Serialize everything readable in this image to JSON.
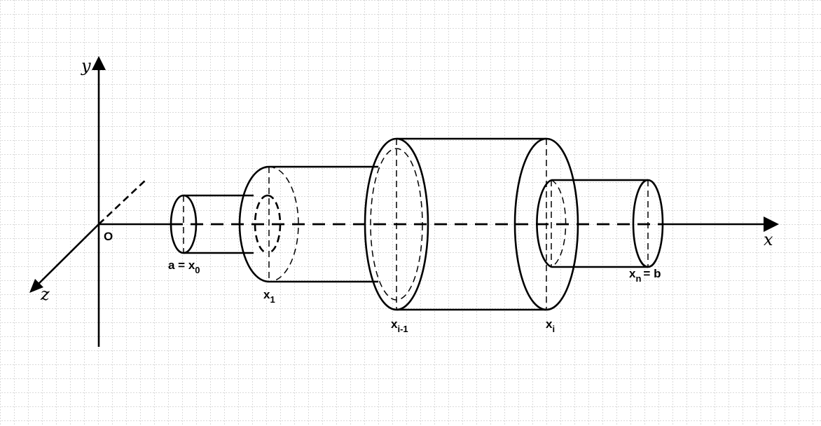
{
  "axes": {
    "x_label": "x",
    "y_label": "y",
    "z_label": "z",
    "origin_label": "O"
  },
  "points": [
    {
      "main": "a = x",
      "sub": "0",
      "tail": ""
    },
    {
      "main": "x",
      "sub": "1",
      "tail": ""
    },
    {
      "main": "x",
      "sub": "i-1",
      "tail": ""
    },
    {
      "main": "x",
      "sub": "i",
      "tail": ""
    },
    {
      "main": "x",
      "sub": "n",
      "tail": "= b"
    }
  ],
  "colors": {
    "ink": "#000000",
    "grid": "#b4b4b4",
    "background": "#ffffff"
  }
}
